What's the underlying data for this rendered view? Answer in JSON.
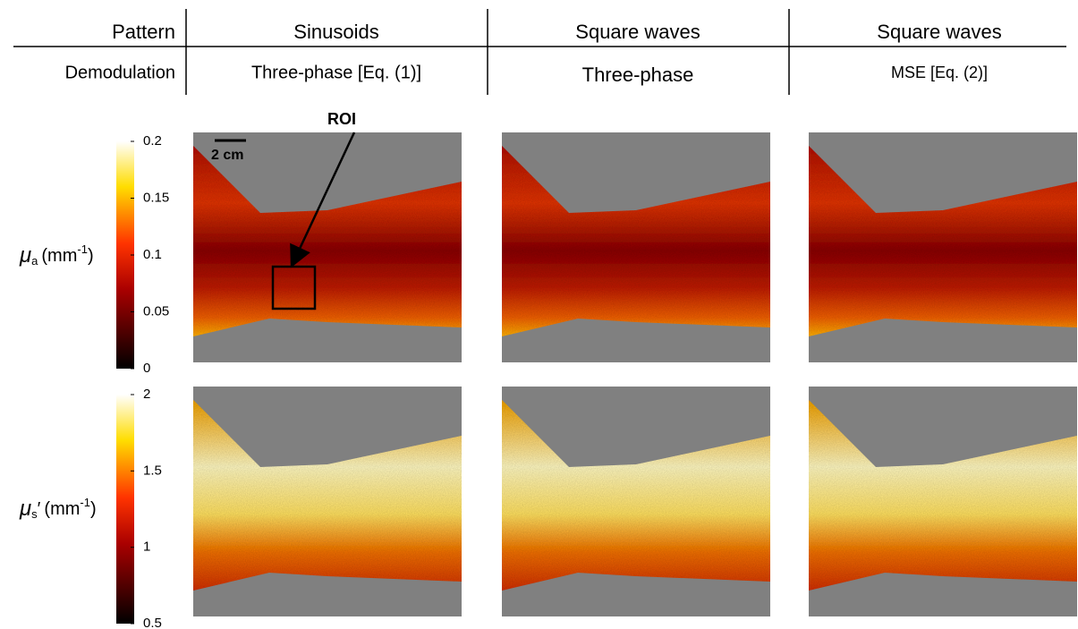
{
  "header": {
    "row_labels": [
      "Pattern",
      "Demodulation"
    ],
    "columns": [
      {
        "pattern": "Sinusoids",
        "demodulation": "Three-phase [Eq. (1)]"
      },
      {
        "pattern": "Square waves",
        "demodulation": "Three-phase"
      },
      {
        "pattern": "Square waves",
        "demodulation": "MSE [Eq. (2)]"
      }
    ]
  },
  "rows": [
    {
      "label": {
        "symbol": "μ",
        "sub": "a",
        "prime": "",
        "unit_open": "(mm",
        "sup": "-1",
        "unit_close": ")"
      },
      "colorbar": {
        "ticks": [
          0,
          0.05,
          0.1,
          0.15,
          0.2
        ]
      }
    },
    {
      "label": {
        "symbol": "μ",
        "sub": "s",
        "prime": "′",
        "unit_open": "(mm",
        "sup": "-1",
        "unit_close": ")"
      },
      "colorbar": {
        "ticks": [
          0.5,
          1,
          1.5,
          2
        ]
      }
    }
  ],
  "annotations": {
    "roi": "ROI",
    "scale_bar": "2 cm"
  }
}
